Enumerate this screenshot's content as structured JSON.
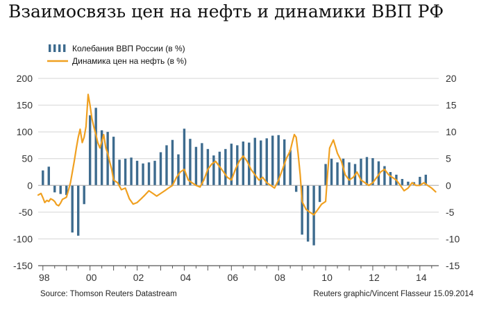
{
  "title": "Взаимосвязь цен на нефть и динамики ВВП РФ",
  "source": "Source: Thomson Reuters Datastream",
  "credit": "Reuters graphic/Vincent Flasseur 15.09.2014",
  "chart_data": {
    "type": "bar+line",
    "title": "Взаимосвязь цен на нефть и динамики ВВП РФ",
    "x_ticks": [
      "98",
      "00",
      "02",
      "04",
      "06",
      "08",
      "10",
      "12",
      "14"
    ],
    "x_range": [
      1997.8,
      2014.8
    ],
    "left_axis": {
      "ticks": [
        "200",
        "150",
        "100",
        "50",
        "0",
        "-50",
        "-100",
        "-150"
      ],
      "ylim": [
        -150,
        200
      ]
    },
    "right_axis": {
      "ticks": [
        "20",
        "15",
        "10",
        "5",
        "0",
        "-5",
        "-10",
        "-15"
      ],
      "ylim": [
        -15,
        20
      ]
    },
    "colors": {
      "bars": "#3d6b8e",
      "line": "#f0a020"
    },
    "series": [
      {
        "name": "Колебания ВВП России (в %)",
        "type": "bar",
        "axis": "right",
        "x": [
          1998.0,
          1998.25,
          1998.5,
          1998.75,
          1999.0,
          1999.25,
          1999.5,
          1999.75,
          2000.0,
          2000.25,
          2000.5,
          2000.75,
          2001.0,
          2001.25,
          2001.5,
          2001.75,
          2002.0,
          2002.25,
          2002.5,
          2002.75,
          2003.0,
          2003.25,
          2003.5,
          2003.75,
          2004.0,
          2004.25,
          2004.5,
          2004.75,
          2005.0,
          2005.25,
          2005.5,
          2005.75,
          2006.0,
          2006.25,
          2006.5,
          2006.75,
          2007.0,
          2007.25,
          2007.5,
          2007.75,
          2008.0,
          2008.25,
          2008.5,
          2008.75,
          2009.0,
          2009.25,
          2009.5,
          2009.75,
          2010.0,
          2010.25,
          2010.5,
          2010.75,
          2011.0,
          2011.25,
          2011.5,
          2011.75,
          2012.0,
          2012.25,
          2012.5,
          2012.75,
          2013.0,
          2013.25,
          2013.5,
          2013.75,
          2014.0,
          2014.25
        ],
        "values": [
          2.8,
          3.5,
          -1.3,
          -1.6,
          -1.8,
          -8.8,
          -9.4,
          -3.5,
          13.1,
          14.5,
          10.3,
          10.0,
          9.1,
          4.8,
          5.0,
          5.2,
          4.6,
          4.1,
          4.3,
          4.6,
          6.2,
          7.5,
          8.5,
          5.8,
          10.6,
          8.7,
          7.2,
          7.9,
          6.8,
          5.6,
          6.3,
          6.8,
          7.8,
          7.5,
          8.2,
          8.0,
          8.9,
          8.4,
          8.8,
          9.3,
          9.4,
          8.6,
          6.6,
          -1.2,
          -9.2,
          -10.5,
          -11.2,
          -3.1,
          4.0,
          5.0,
          4.3,
          5.0,
          4.3,
          4.0,
          5.0,
          5.3,
          5.1,
          4.5,
          3.6,
          2.5,
          2.0,
          1.2,
          0.7,
          0.6,
          1.6,
          2.0
        ]
      },
      {
        "name": "Динамика цен на нефть (в %)",
        "type": "line",
        "axis": "left",
        "x": [
          1997.8,
          1997.92,
          1998.0,
          1998.08,
          1998.17,
          1998.25,
          1998.33,
          1998.42,
          1998.5,
          1998.58,
          1998.67,
          1998.75,
          1998.83,
          1998.92,
          1999.0,
          1999.08,
          1999.17,
          1999.25,
          1999.33,
          1999.42,
          1999.5,
          1999.58,
          1999.67,
          1999.75,
          1999.83,
          1999.92,
          2000.0,
          2000.08,
          2000.17,
          2000.25,
          2000.33,
          2000.42,
          2000.5,
          2000.58,
          2000.67,
          2000.75,
          2000.83,
          2000.92,
          2001.0,
          2001.17,
          2001.33,
          2001.5,
          2001.67,
          2001.83,
          2002.0,
          2002.17,
          2002.33,
          2002.5,
          2002.67,
          2002.83,
          2003.0,
          2003.17,
          2003.33,
          2003.5,
          2003.67,
          2003.83,
          2004.0,
          2004.17,
          2004.33,
          2004.5,
          2004.67,
          2004.83,
          2005.0,
          2005.17,
          2005.33,
          2005.5,
          2005.67,
          2005.83,
          2006.0,
          2006.17,
          2006.33,
          2006.5,
          2006.67,
          2006.83,
          2007.0,
          2007.17,
          2007.33,
          2007.5,
          2007.67,
          2007.83,
          2008.0,
          2008.17,
          2008.33,
          2008.5,
          2008.58,
          2008.67,
          2008.75,
          2008.83,
          2008.92,
          2009.0,
          2009.17,
          2009.33,
          2009.5,
          2009.67,
          2009.83,
          2010.0,
          2010.08,
          2010.17,
          2010.33,
          2010.5,
          2010.67,
          2010.83,
          2011.0,
          2011.17,
          2011.33,
          2011.5,
          2011.67,
          2011.83,
          2012.0,
          2012.17,
          2012.33,
          2012.5,
          2012.67,
          2012.83,
          2013.0,
          2013.17,
          2013.33,
          2013.5,
          2013.67,
          2013.83,
          2014.0,
          2014.17,
          2014.33,
          2014.5,
          2014.67
        ],
        "values": [
          -18,
          -15,
          -23,
          -32,
          -28,
          -30,
          -25,
          -27,
          -30,
          -36,
          -38,
          -33,
          -26,
          -24,
          -22,
          -10,
          5,
          25,
          45,
          70,
          90,
          105,
          80,
          90,
          110,
          170,
          150,
          125,
          108,
          95,
          80,
          70,
          82,
          95,
          70,
          60,
          45,
          30,
          10,
          5,
          -8,
          -5,
          -25,
          -35,
          -32,
          -25,
          -18,
          -10,
          -15,
          -20,
          -15,
          -10,
          -5,
          0,
          15,
          25,
          30,
          10,
          5,
          0,
          -3,
          10,
          30,
          40,
          45,
          35,
          25,
          15,
          10,
          30,
          45,
          55,
          45,
          30,
          20,
          10,
          15,
          5,
          0,
          -5,
          10,
          30,
          50,
          65,
          80,
          95,
          90,
          60,
          20,
          -30,
          -45,
          -50,
          -55,
          -45,
          -35,
          -30,
          20,
          70,
          85,
          60,
          45,
          20,
          10,
          15,
          25,
          10,
          5,
          0,
          5,
          15,
          25,
          30,
          20,
          15,
          10,
          0,
          -10,
          -5,
          5,
          0,
          0,
          5,
          0,
          -5,
          -12
        ]
      }
    ]
  }
}
